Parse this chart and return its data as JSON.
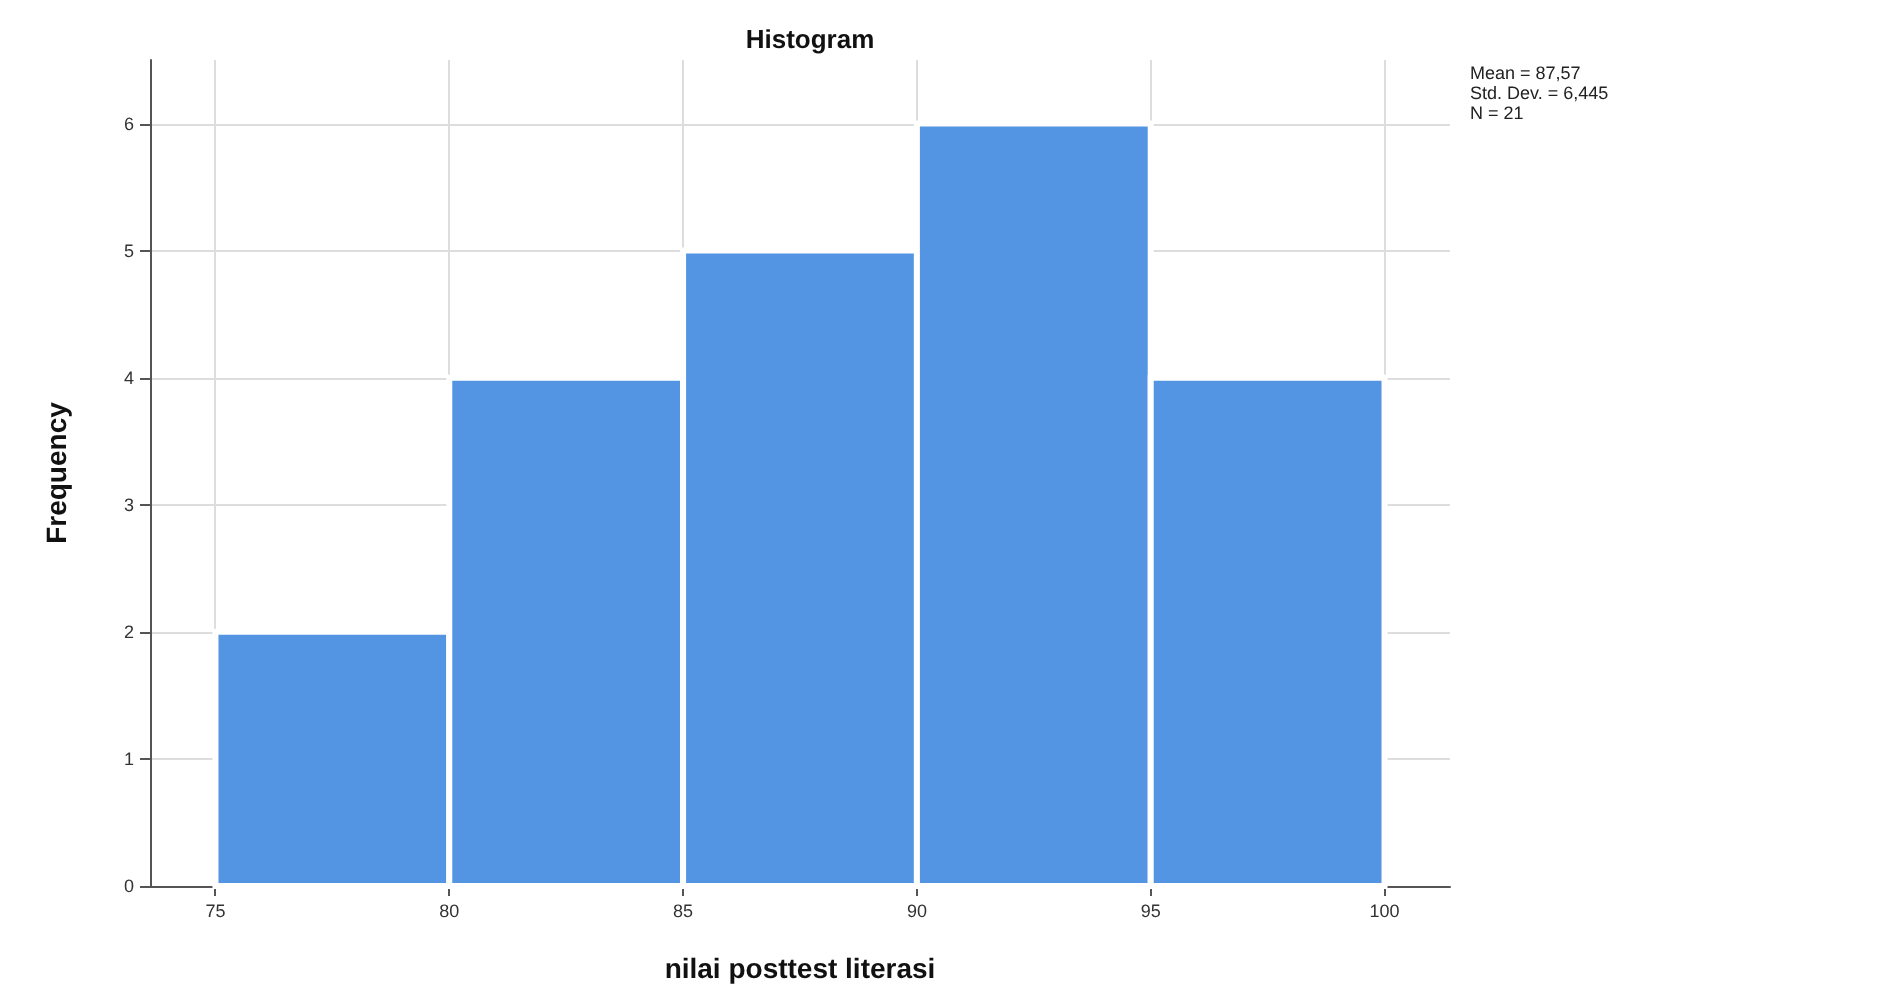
{
  "chart_data": {
    "type": "histogram",
    "title": "Histogram",
    "xlabel": "nilai posttest literasi",
    "ylabel": "Frequency",
    "bins": [
      75,
      80,
      85,
      90,
      95,
      100
    ],
    "values": [
      2,
      4,
      5,
      6,
      4
    ],
    "color": "#5394e3",
    "xlim": [
      73.6,
      101.4
    ],
    "xticks": [
      75,
      80,
      85,
      90,
      95,
      100
    ],
    "ylim": [
      0,
      6.5
    ],
    "yticks": [
      0,
      1,
      2,
      3,
      4,
      5,
      6
    ],
    "grid": true,
    "annotations": [
      "Mean = 87,57",
      "Std. Dev. = 6,445",
      "N = 21"
    ]
  }
}
